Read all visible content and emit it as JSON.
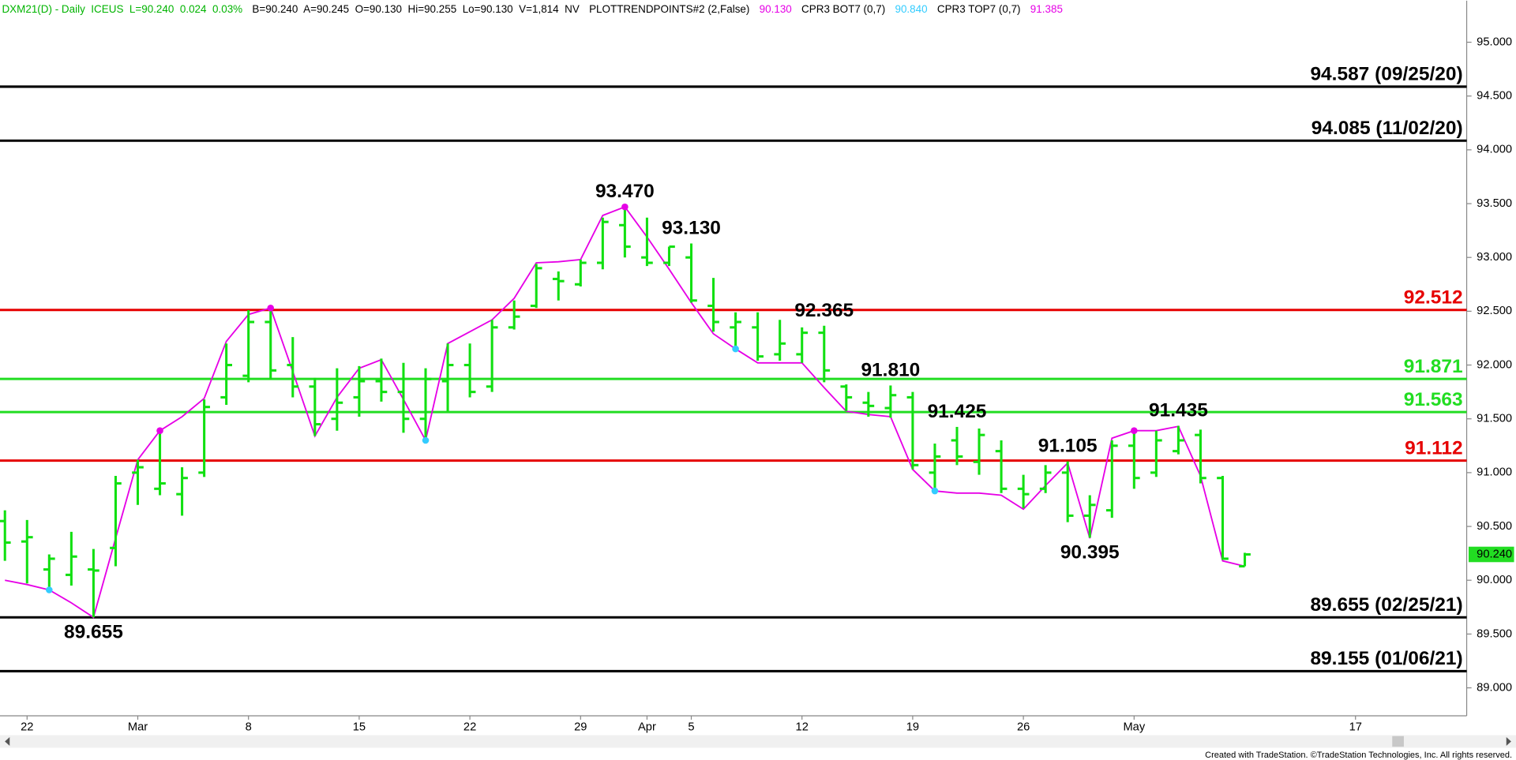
{
  "chart_data": {
    "type": "ohlc",
    "header": [
      {
        "text": "DXM21(D) - Daily  ICEUS  L=90.240  0.024  0.03%",
        "color": "#00b400"
      },
      {
        "text": "B=90.240  A=90.245  O=90.130  Hi=90.255  Lo=90.130  V=1,814  NV",
        "color": "#000000"
      }
    ],
    "footer": "Created with TradeStation. ©TradeStation Technologies, Inc. All rights reserved.",
    "categories": [
      null,
      "22",
      null,
      null,
      null,
      null,
      "Mar",
      null,
      null,
      null,
      null,
      "8",
      null,
      null,
      null,
      null,
      "15",
      null,
      null,
      null,
      null,
      "22",
      null,
      null,
      null,
      null,
      "29",
      null,
      null,
      "Apr",
      null,
      "5",
      null,
      null,
      null,
      null,
      "12",
      null,
      null,
      null,
      null,
      "19",
      null,
      null,
      null,
      null,
      "26",
      null,
      null,
      null,
      null,
      "May",
      null,
      null,
      null,
      null,
      null,
      null,
      null,
      null,
      null,
      "17",
      null,
      null,
      null,
      null
    ],
    "bar_color": "#11e011",
    "open": [
      90.55,
      90.36,
      90.1,
      90.05,
      90.1,
      90.3,
      91.0,
      90.85,
      90.8,
      91.0,
      91.7,
      91.9,
      92.4,
      92.0,
      91.8,
      91.5,
      91.7,
      91.85,
      91.75,
      91.5,
      91.85,
      92.0,
      91.8,
      92.35,
      92.55,
      92.8,
      92.75,
      92.95,
      93.3,
      93.0,
      92.95,
      93.0,
      92.55,
      92.35,
      92.35,
      92.1,
      92.1,
      92.3,
      91.8,
      91.65,
      91.6,
      91.7,
      91.0,
      91.3,
      91.1,
      91.2,
      90.85,
      90.85,
      91.0,
      90.6,
      90.65,
      91.25,
      91.0,
      91.2,
      91.35,
      90.95,
      90.13,
      null,
      null,
      null,
      null,
      null,
      null,
      null,
      null,
      null
    ],
    "high": [
      90.65,
      90.56,
      90.24,
      90.45,
      90.29,
      90.97,
      91.12,
      91.39,
      91.05,
      91.68,
      92.2,
      92.51,
      92.53,
      92.26,
      91.88,
      91.97,
      91.99,
      92.06,
      92.02,
      91.97,
      92.2,
      92.2,
      92.42,
      92.6,
      92.94,
      92.87,
      92.98,
      93.37,
      93.47,
      93.37,
      93.1,
      93.13,
      92.81,
      92.49,
      92.49,
      92.42,
      92.35,
      92.365,
      91.82,
      91.75,
      91.81,
      91.75,
      91.27,
      91.425,
      91.41,
      91.3,
      90.98,
      91.07,
      91.105,
      90.79,
      91.3,
      91.41,
      91.39,
      91.435,
      91.4,
      90.97,
      90.255,
      null,
      null,
      null,
      null,
      null,
      null,
      null,
      null,
      null
    ],
    "low": [
      90.18,
      89.97,
      89.91,
      89.95,
      89.655,
      90.13,
      90.7,
      90.79,
      90.6,
      90.96,
      91.63,
      91.84,
      91.87,
      91.7,
      91.34,
      91.39,
      91.52,
      91.66,
      91.37,
      91.3,
      91.57,
      91.7,
      91.75,
      92.33,
      92.53,
      92.6,
      92.73,
      92.89,
      93.0,
      92.92,
      92.92,
      92.58,
      92.31,
      92.15,
      92.04,
      92.04,
      92.02,
      91.84,
      91.57,
      91.52,
      91.51,
      91.03,
      90.82,
      91.07,
      90.98,
      90.81,
      90.67,
      90.81,
      90.54,
      90.395,
      90.58,
      90.85,
      90.96,
      91.17,
      90.9,
      90.19,
      90.13,
      null,
      null,
      null,
      null,
      null,
      null,
      null,
      null,
      null
    ],
    "close": [
      90.35,
      90.4,
      90.2,
      90.22,
      90.09,
      90.9,
      91.05,
      90.9,
      90.95,
      91.61,
      92.0,
      92.4,
      91.95,
      91.8,
      91.45,
      91.65,
      91.85,
      91.75,
      91.5,
      91.87,
      92.0,
      91.75,
      92.35,
      92.45,
      92.9,
      92.78,
      92.95,
      93.33,
      93.1,
      92.95,
      93.1,
      92.6,
      92.4,
      92.4,
      92.08,
      92.2,
      92.3,
      91.95,
      91.7,
      91.62,
      91.72,
      91.07,
      91.15,
      91.15,
      91.35,
      90.85,
      90.8,
      91.0,
      90.6,
      90.7,
      91.25,
      90.95,
      91.3,
      91.3,
      90.95,
      90.2,
      90.24,
      null,
      null,
      null,
      null,
      null,
      null,
      null,
      null,
      null
    ],
    "high_value_labels": [
      null,
      null,
      null,
      null,
      null,
      null,
      null,
      null,
      null,
      null,
      null,
      null,
      null,
      null,
      null,
      null,
      null,
      null,
      null,
      null,
      null,
      null,
      null,
      null,
      null,
      null,
      null,
      null,
      "93.470",
      null,
      null,
      "93.130",
      null,
      null,
      null,
      null,
      null,
      "92.365",
      null,
      null,
      "91.810",
      null,
      null,
      "91.425",
      null,
      null,
      null,
      null,
      "91.105",
      null,
      null,
      null,
      null,
      "91.435",
      null,
      null,
      null,
      null,
      null,
      null,
      null,
      null,
      null,
      null,
      null,
      null
    ],
    "low_value_labels": [
      null,
      null,
      null,
      null,
      "89.655",
      null,
      null,
      null,
      null,
      null,
      null,
      null,
      null,
      null,
      null,
      null,
      null,
      null,
      null,
      null,
      null,
      null,
      null,
      null,
      null,
      null,
      null,
      null,
      null,
      null,
      null,
      null,
      null,
      null,
      null,
      null,
      null,
      null,
      null,
      null,
      null,
      null,
      null,
      null,
      null,
      null,
      null,
      null,
      null,
      "90.395",
      null,
      null,
      null,
      null,
      null,
      null,
      null,
      null,
      null,
      null,
      null,
      null,
      null,
      null,
      null,
      null
    ],
    "series": [
      {
        "name": "PLOTTRENDPOINTS#2 (2,False)",
        "header_value": "90.130",
        "color": "#e600e6",
        "kind": "line",
        "values": [
          90.0,
          89.96,
          89.91,
          89.79,
          89.655,
          90.39,
          91.12,
          91.39,
          91.52,
          91.69,
          92.22,
          92.47,
          92.53,
          91.94,
          91.34,
          91.7,
          91.97,
          92.05,
          91.68,
          91.3,
          92.2,
          92.31,
          92.42,
          92.62,
          92.95,
          92.96,
          92.98,
          93.39,
          93.47,
          93.19,
          92.89,
          92.58,
          92.29,
          92.15,
          92.02,
          92.02,
          92.02,
          91.79,
          91.57,
          91.54,
          91.52,
          91.03,
          90.83,
          90.81,
          90.81,
          90.79,
          90.66,
          90.88,
          91.09,
          90.39,
          91.32,
          91.39,
          91.39,
          91.43,
          90.97,
          90.18,
          90.13,
          null,
          null,
          null,
          null,
          null,
          null,
          null,
          null,
          null
        ]
      },
      {
        "name": "CPR3 BOT7 (0,7)",
        "header_value": "90.840",
        "color": "#33ccff",
        "kind": "dot",
        "values": [
          null,
          null,
          89.91,
          null,
          null,
          null,
          null,
          null,
          null,
          null,
          null,
          null,
          null,
          null,
          null,
          null,
          null,
          null,
          null,
          91.3,
          null,
          null,
          null,
          null,
          null,
          null,
          null,
          null,
          null,
          null,
          null,
          null,
          null,
          92.15,
          null,
          null,
          null,
          null,
          null,
          null,
          null,
          null,
          90.83,
          null,
          null,
          null,
          null,
          null,
          null,
          null,
          null,
          null,
          null,
          null,
          null,
          null,
          null,
          null,
          null,
          null,
          null,
          null,
          null,
          null,
          null,
          null
        ]
      },
      {
        "name": "CPR3 TOP7 (0,7)",
        "header_value": "91.385",
        "color": "#e600e6",
        "kind": "dot",
        "values": [
          null,
          null,
          null,
          null,
          null,
          null,
          null,
          91.39,
          null,
          null,
          null,
          null,
          92.53,
          null,
          null,
          null,
          null,
          null,
          null,
          null,
          null,
          null,
          null,
          null,
          null,
          null,
          null,
          null,
          93.47,
          null,
          null,
          null,
          null,
          null,
          null,
          null,
          null,
          null,
          null,
          null,
          null,
          null,
          null,
          null,
          null,
          null,
          null,
          null,
          null,
          null,
          null,
          91.39,
          null,
          null,
          null,
          null,
          null,
          null,
          null,
          null,
          null,
          null,
          null,
          null,
          null,
          null
        ]
      }
    ],
    "levels": [
      {
        "value": 94.587,
        "label": "94.587 (09/25/20)",
        "color": "#000000"
      },
      {
        "value": 94.085,
        "label": "94.085 (11/02/20)",
        "color": "#000000"
      },
      {
        "value": 92.512,
        "label": "92.512",
        "color": "#e60000"
      },
      {
        "value": 91.871,
        "label": "91.871",
        "color": "#22dd22"
      },
      {
        "value": 91.563,
        "label": "91.563",
        "color": "#22dd22"
      },
      {
        "value": 91.112,
        "label": "91.112",
        "color": "#e60000"
      },
      {
        "value": 89.655,
        "label": "89.655 (02/25/21)",
        "color": "#000000"
      },
      {
        "value": 89.155,
        "label": "89.155 (01/06/21)",
        "color": "#000000"
      }
    ],
    "last_price": {
      "value": 90.24,
      "label": "90.240",
      "color": "#22dd22"
    },
    "ylim": [
      88.74,
      95.386
    ],
    "yticks": [
      {
        "value": 89.0,
        "label": "89.000"
      },
      {
        "value": 89.5,
        "label": "89.500"
      },
      {
        "value": 90.0,
        "label": "90.000"
      },
      {
        "value": 90.5,
        "label": "90.500"
      },
      {
        "value": 91.0,
        "label": "91.000"
      },
      {
        "value": 91.5,
        "label": "91.500"
      },
      {
        "value": 92.0,
        "label": "92.000"
      },
      {
        "value": 92.5,
        "label": "92.500"
      },
      {
        "value": 93.0,
        "label": "93.000"
      },
      {
        "value": 93.5,
        "label": "93.500"
      },
      {
        "value": 94.0,
        "label": "94.000"
      },
      {
        "value": 94.5,
        "label": "94.500"
      },
      {
        "value": 95.0,
        "label": "95.000"
      }
    ],
    "grid": false
  }
}
